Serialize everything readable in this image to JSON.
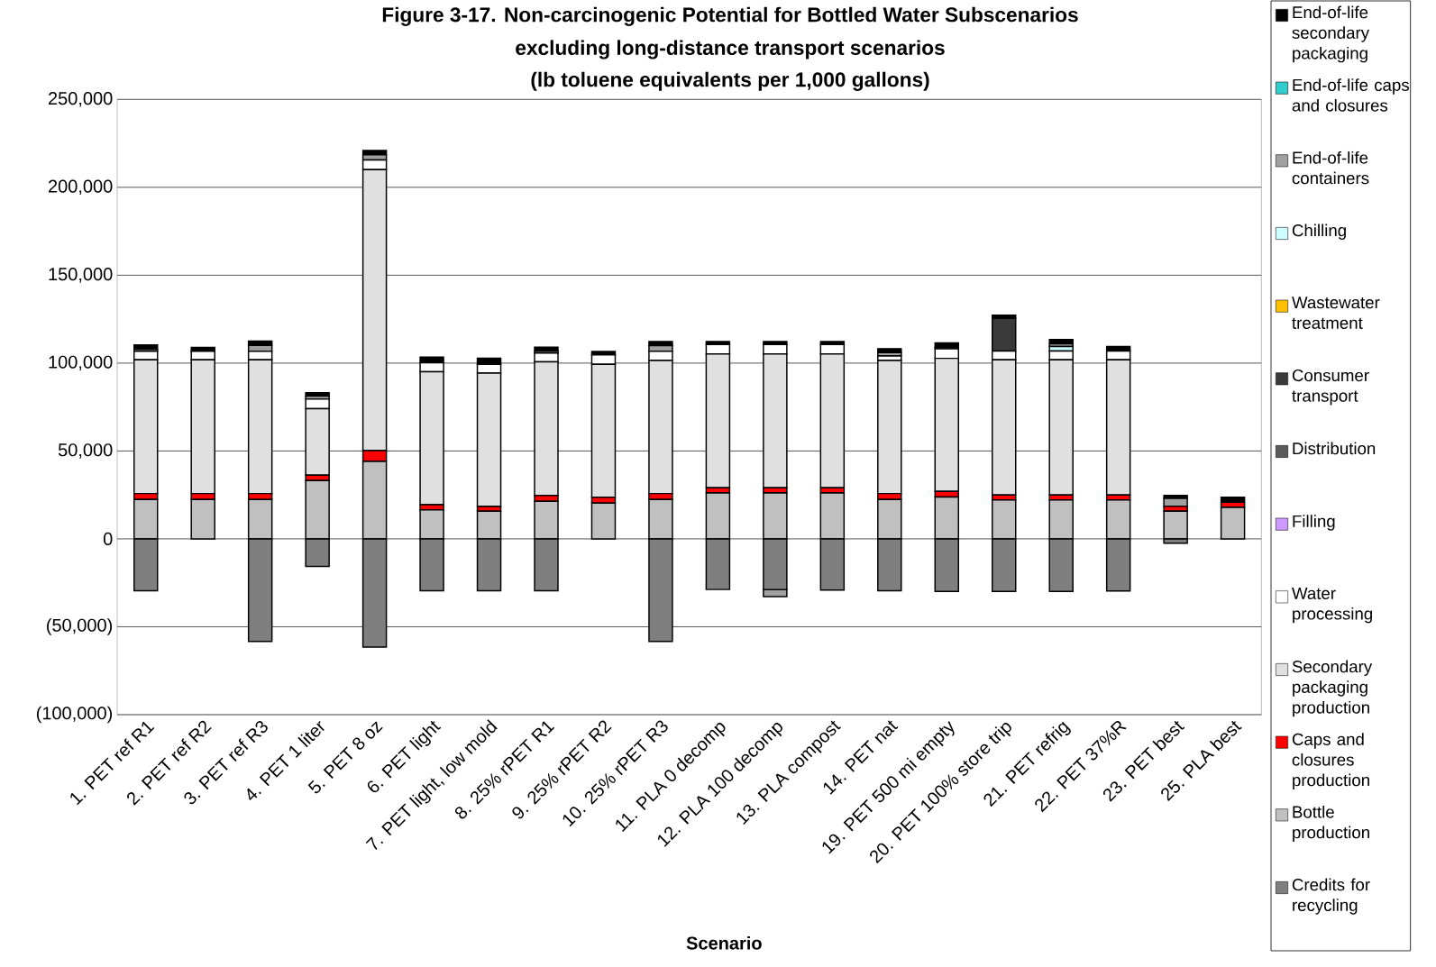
{
  "chart_data": {
    "type": "bar",
    "stacked": true,
    "title": "Figure 3-17. Non-carcinogenic Potential for Bottled Water Subscenarios",
    "subtitle": "excluding long-distance transport scenarios",
    "annotations": [
      "(lb toluene equivalents per 1,000 gallons)"
    ],
    "xlabel": "Scenario",
    "categories": [
      "1. PET ref R1",
      "2. PET ref R2",
      "3. PET ref R3",
      "4. PET 1 liter",
      "5. PET 8 oz",
      "6. PET light",
      "7. PET light, low mold",
      "8. 25% rPET R1",
      "9. 25% rPET R2",
      "10. 25% rPET R3",
      "11. PLA 0 decomp",
      "12. PLA 100 decomp",
      "13. PLA compost",
      "14. PET nat",
      "19. PET 500 mi empty",
      "20. PET 100% store trip",
      "21. PET refrig",
      "22. PET 37%R",
      "23. PET best",
      "25. PLA best"
    ],
    "ylim": [
      -100000,
      250000
    ],
    "yticks": [
      {
        "value": -100000,
        "label": "(100,000)"
      },
      {
        "value": -50000,
        "label": "(50,000)"
      },
      {
        "value": 0,
        "label": "0"
      },
      {
        "value": 50000,
        "label": "50,000"
      },
      {
        "value": 100000,
        "label": "100,000"
      },
      {
        "value": 150000,
        "label": "150,000"
      },
      {
        "value": 200000,
        "label": "200,000"
      },
      {
        "value": 250000,
        "label": "250,000"
      }
    ],
    "grid": "y",
    "legend": "right",
    "series": [
      {
        "name": "Credits for recycling",
        "color": "#7f7f7f",
        "values": [
          -29500,
          0,
          -58400,
          -15700,
          -61500,
          -29500,
          -29500,
          -29500,
          0,
          -58400,
          -28800,
          -28800,
          -29100,
          -29500,
          -29900,
          -29900,
          -29900,
          -29600,
          -2500,
          0
        ]
      },
      {
        "name": "Bottle production",
        "color": "#c0c0c0",
        "values": [
          22400,
          22400,
          22400,
          33200,
          44100,
          16500,
          15700,
          21400,
          20400,
          22400,
          26100,
          26100,
          26100,
          22400,
          23800,
          22100,
          22100,
          22100,
          15700,
          17900
        ]
      },
      {
        "name": "Caps and closures production",
        "color": "#ff0000",
        "values": [
          3400,
          3400,
          3400,
          3000,
          6100,
          2900,
          2700,
          3300,
          3300,
          3400,
          3000,
          3000,
          3000,
          3400,
          3200,
          2900,
          2900,
          2900,
          2900,
          2900
        ]
      },
      {
        "name": "Secondary packaging production",
        "color": "#e0e0e0",
        "values": [
          76100,
          76100,
          76100,
          37900,
          159900,
          75700,
          75900,
          76000,
          75600,
          75700,
          76100,
          76100,
          76100,
          75700,
          75700,
          76900,
          76900,
          76900,
          0,
          0
        ]
      },
      {
        "name": "Water processing",
        "color": "#ffffff",
        "values": [
          4800,
          4800,
          4800,
          5400,
          5500,
          5100,
          5000,
          5000,
          5400,
          5200,
          5400,
          5400,
          5400,
          2500,
          5400,
          5000,
          5000,
          5000,
          0,
          0
        ]
      },
      {
        "name": "Filling",
        "color": "#cc99ff",
        "values": [
          0,
          0,
          0,
          0,
          0,
          0,
          0,
          0,
          0,
          0,
          0,
          0,
          0,
          0,
          0,
          0,
          0,
          0,
          0,
          0
        ]
      },
      {
        "name": "Distribution",
        "color": "#595959",
        "values": [
          0,
          0,
          0,
          0,
          0,
          0,
          0,
          0,
          0,
          0,
          0,
          0,
          0,
          0,
          0,
          0,
          0,
          0,
          0,
          0
        ]
      },
      {
        "name": "Consumer transport",
        "color": "#3a3a3a",
        "values": [
          0,
          0,
          0,
          0,
          0,
          0,
          0,
          0,
          0,
          0,
          0,
          0,
          0,
          0,
          0,
          18600,
          0,
          0,
          0,
          0
        ]
      },
      {
        "name": "Wastewater treatment",
        "color": "#ffc000",
        "values": [
          0,
          0,
          0,
          0,
          0,
          0,
          0,
          0,
          0,
          0,
          0,
          0,
          0,
          0,
          0,
          0,
          0,
          0,
          0,
          0
        ]
      },
      {
        "name": "Chilling",
        "color": "#ccffff",
        "values": [
          0,
          0,
          0,
          0,
          0,
          0,
          0,
          0,
          0,
          0,
          0,
          0,
          0,
          0,
          0,
          0,
          2500,
          0,
          0,
          0
        ]
      },
      {
        "name": "End-of-life containers",
        "color": "#a0a0a0",
        "values": [
          1000,
          0,
          3400,
          1700,
          2900,
          0,
          0,
          1000,
          0,
          3200,
          0,
          -4000,
          0,
          2000,
          1000,
          0,
          1500,
          0,
          4400,
          0
        ]
      },
      {
        "name": "End-of-life caps and closures",
        "color": "#33cccc",
        "values": [
          0,
          0,
          0,
          0,
          0,
          0,
          0,
          0,
          0,
          0,
          0,
          0,
          0,
          0,
          0,
          0,
          0,
          0,
          0,
          0
        ]
      },
      {
        "name": "End-of-life secondary packaging",
        "color": "#000000",
        "values": [
          2600,
          2200,
          2400,
          1900,
          2500,
          3200,
          3500,
          2400,
          1900,
          2400,
          1700,
          1700,
          1700,
          2200,
          2400,
          1700,
          2500,
          2500,
          1700,
          2900
        ]
      }
    ]
  }
}
